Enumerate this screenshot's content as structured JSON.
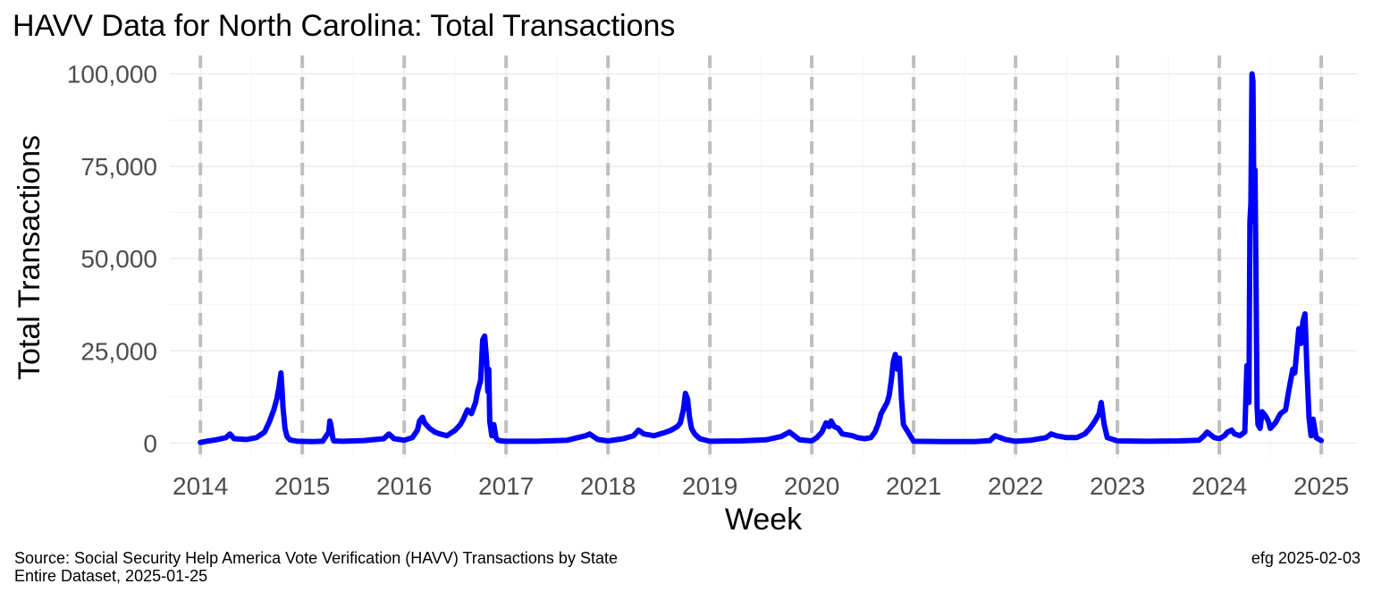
{
  "chart_data": {
    "type": "line",
    "title": "HAVV Data for North Carolina:  Total Transactions",
    "xlabel": "Week",
    "ylabel": "Total Transactions",
    "xlim": [
      2013.7,
      2025.35
    ],
    "ylim": [
      -4000,
      105000
    ],
    "x_ticks": [
      2014,
      2015,
      2016,
      2017,
      2018,
      2019,
      2020,
      2021,
      2022,
      2023,
      2024,
      2025
    ],
    "y_ticks": [
      0,
      25000,
      50000,
      75000,
      100000
    ],
    "y_tick_labels": [
      "0",
      "25,000",
      "50,000",
      "75,000",
      "100,000"
    ],
    "year_lines": [
      2014,
      2015,
      2016,
      2017,
      2018,
      2019,
      2020,
      2021,
      2022,
      2023,
      2024,
      2025
    ],
    "line_color": "#0000ff",
    "series": [
      {
        "name": "Total Transactions",
        "x": [
          2014.0,
          2014.06,
          2014.15,
          2014.25,
          2014.29,
          2014.33,
          2014.45,
          2014.55,
          2014.63,
          2014.68,
          2014.72,
          2014.75,
          2014.77,
          2014.79,
          2014.8,
          2014.81,
          2014.83,
          2014.85,
          2014.88,
          2014.95,
          2015.1,
          2015.2,
          2015.26,
          2015.27,
          2015.28,
          2015.3,
          2015.31,
          2015.4,
          2015.6,
          2015.8,
          2015.85,
          2015.9,
          2016.0,
          2016.08,
          2016.13,
          2016.15,
          2016.18,
          2016.2,
          2016.25,
          2016.3,
          2016.35,
          2016.42,
          2016.5,
          2016.55,
          2016.58,
          2016.62,
          2016.66,
          2016.7,
          2016.72,
          2016.75,
          2016.77,
          2016.79,
          2016.81,
          2016.82,
          2016.83,
          2016.84,
          2016.86,
          2016.88,
          2016.9,
          2016.92,
          2016.95,
          2017.0,
          2017.3,
          2017.6,
          2017.78,
          2017.82,
          2017.9,
          2018.0,
          2018.15,
          2018.25,
          2018.3,
          2018.35,
          2018.45,
          2018.55,
          2018.62,
          2018.68,
          2018.71,
          2018.74,
          2018.76,
          2018.78,
          2018.8,
          2018.82,
          2018.85,
          2018.9,
          2019.0,
          2019.3,
          2019.55,
          2019.7,
          2019.78,
          2019.82,
          2019.88,
          2020.0,
          2020.05,
          2020.1,
          2020.14,
          2020.17,
          2020.19,
          2020.22,
          2020.26,
          2020.3,
          2020.4,
          2020.45,
          2020.52,
          2020.58,
          2020.62,
          2020.65,
          2020.68,
          2020.72,
          2020.74,
          2020.76,
          2020.78,
          2020.8,
          2020.82,
          2020.84,
          2020.86,
          2020.88,
          2020.9,
          2021.0,
          2021.3,
          2021.6,
          2021.75,
          2021.8,
          2021.9,
          2022.0,
          2022.15,
          2022.3,
          2022.35,
          2022.4,
          2022.5,
          2022.6,
          2022.68,
          2022.73,
          2022.78,
          2022.82,
          2022.84,
          2022.87,
          2022.9,
          2023.0,
          2023.3,
          2023.6,
          2023.8,
          2023.85,
          2023.88,
          2023.95,
          2024.0,
          2024.05,
          2024.08,
          2024.12,
          2024.15,
          2024.2,
          2024.25,
          2024.27,
          2024.29,
          2024.3,
          2024.31,
          2024.32,
          2024.33,
          2024.34,
          2024.35,
          2024.36,
          2024.37,
          2024.38,
          2024.4,
          2024.42,
          2024.45,
          2024.48,
          2024.5,
          2024.55,
          2024.6,
          2024.65,
          2024.68,
          2024.72,
          2024.74,
          2024.76,
          2024.78,
          2024.8,
          2024.82,
          2024.84,
          2024.86,
          2024.88,
          2024.9,
          2024.92,
          2024.95,
          2025.0
        ],
        "values": [
          200,
          500,
          900,
          1500,
          2500,
          1200,
          1000,
          1500,
          3000,
          6000,
          9000,
          12000,
          15000,
          19000,
          15000,
          10000,
          4000,
          1800,
          900,
          500,
          400,
          500,
          3000,
          6000,
          5000,
          1200,
          600,
          500,
          700,
          1200,
          2500,
          1200,
          800,
          1500,
          3500,
          6000,
          7000,
          5500,
          4000,
          3000,
          2500,
          2000,
          3500,
          5000,
          6500,
          9000,
          8000,
          11000,
          14000,
          17000,
          28000,
          29000,
          22000,
          14000,
          20000,
          6000,
          2000,
          5000,
          1500,
          800,
          600,
          500,
          500,
          800,
          2000,
          2500,
          1000,
          600,
          1200,
          2000,
          3500,
          2500,
          2000,
          2800,
          3500,
          4500,
          5500,
          9000,
          13500,
          12000,
          7000,
          4000,
          2500,
          1200,
          500,
          600,
          900,
          1800,
          3000,
          2200,
          900,
          600,
          1500,
          3000,
          5500,
          4500,
          6000,
          4500,
          4000,
          2500,
          2000,
          1500,
          1200,
          1500,
          3000,
          5000,
          8000,
          10000,
          11000,
          13000,
          17000,
          22000,
          24000,
          20000,
          23000,
          12000,
          5000,
          500,
          400,
          400,
          700,
          2000,
          1000,
          500,
          800,
          1500,
          2500,
          2000,
          1500,
          1500,
          2500,
          4000,
          6000,
          8000,
          11000,
          5000,
          1500,
          600,
          500,
          600,
          800,
          2000,
          3000,
          1500,
          1200,
          2000,
          3000,
          3500,
          2500,
          2000,
          3000,
          21000,
          11000,
          60000,
          65000,
          100000,
          98000,
          60000,
          74000,
          45000,
          10000,
          5000,
          4000,
          8500,
          7500,
          6000,
          4000,
          5500,
          8000,
          9000,
          14000,
          20000,
          19000,
          25000,
          31000,
          27000,
          33000,
          35000,
          20000,
          7000,
          2000,
          6500,
          1500,
          700
        ]
      }
    ]
  },
  "caption": {
    "line1": "Source:  Social Security Help America Vote Verification (HAVV) Transactions by State",
    "line2": "Entire Dataset, 2025-01-25",
    "stamp": "efg 2025-02-03"
  }
}
